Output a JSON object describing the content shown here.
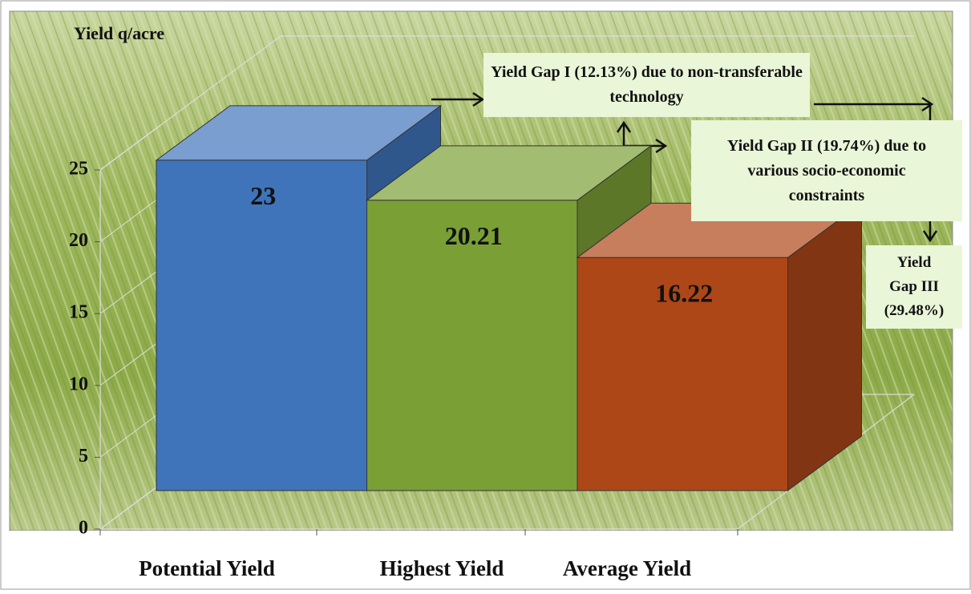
{
  "chart_data": {
    "type": "bar3d",
    "y_axis_label": "Yield q/acre",
    "categories": [
      "Potential Yield",
      "Highest Yield",
      "Average Yield"
    ],
    "values": [
      23,
      20.21,
      16.22
    ],
    "colors": [
      "#3f74ba",
      "#7a9f35",
      "#ad4718"
    ],
    "ylim": [
      0,
      25
    ],
    "yticks": [
      0,
      5,
      10,
      15,
      20,
      25
    ],
    "annotations": [
      "Yield Gap I (12.13%) due to non-transferable technology",
      "Yield Gap II (19.74%) due to various socio-economic constraints",
      "Yield Gap III (29.48%)"
    ]
  }
}
